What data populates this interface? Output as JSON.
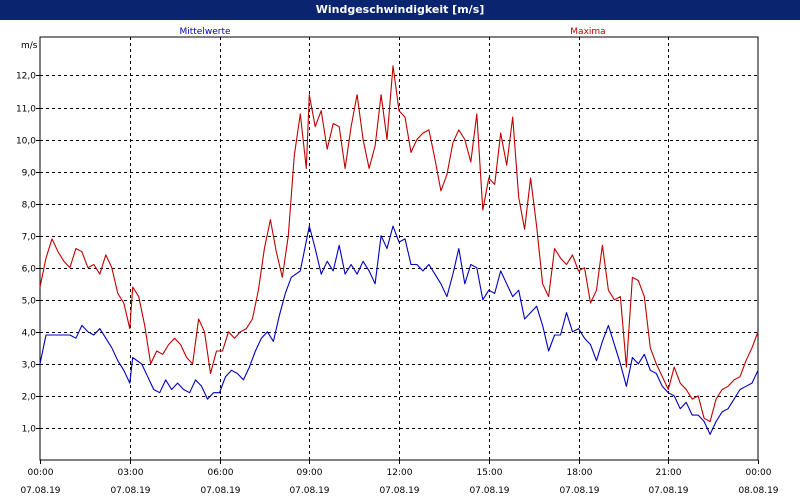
{
  "window": {
    "title": "Windgeschwindigkeit [m/s]"
  },
  "chart_data": {
    "type": "line",
    "title": "Windgeschwindigkeit [m/s]",
    "ylabel": "m/s",
    "ylim": [
      0,
      13.2
    ],
    "yticks": [
      "1,0",
      "2,0",
      "3,0",
      "4,0",
      "5,0",
      "6,0",
      "7,0",
      "8,0",
      "9,0",
      "10,0",
      "11,0",
      "12,0"
    ],
    "xlim": [
      0,
      24
    ],
    "xticks": [
      {
        "time": "00:00",
        "date": "07.08.19"
      },
      {
        "time": "03:00",
        "date": "07.08.19"
      },
      {
        "time": "06:00",
        "date": "07.08.19"
      },
      {
        "time": "09:00",
        "date": "07.08.19"
      },
      {
        "time": "12:00",
        "date": "07.08.19"
      },
      {
        "time": "15:00",
        "date": "07.08.19"
      },
      {
        "time": "18:00",
        "date": "07.08.19"
      },
      {
        "time": "21:00",
        "date": "07.08.19"
      },
      {
        "time": "00:00",
        "date": "08.08.19"
      }
    ],
    "grid": true,
    "legend": "top",
    "series": [
      {
        "name": "Mittelwerte",
        "color": "#0000c0",
        "points": [
          [
            0,
            3.0
          ],
          [
            0.2,
            3.9
          ],
          [
            1,
            3.9
          ],
          [
            1.2,
            3.8
          ],
          [
            1.4,
            4.2
          ],
          [
            1.6,
            4.0
          ],
          [
            1.8,
            3.9
          ],
          [
            2.0,
            4.1
          ],
          [
            2.2,
            3.8
          ],
          [
            2.4,
            3.5
          ],
          [
            2.6,
            3.1
          ],
          [
            2.8,
            2.8
          ],
          [
            3.0,
            2.4
          ],
          [
            3.1,
            3.2
          ],
          [
            3.4,
            3.0
          ],
          [
            3.6,
            2.6
          ],
          [
            3.8,
            2.2
          ],
          [
            4.0,
            2.1
          ],
          [
            4.2,
            2.5
          ],
          [
            4.4,
            2.2
          ],
          [
            4.6,
            2.4
          ],
          [
            4.8,
            2.2
          ],
          [
            5.0,
            2.1
          ],
          [
            5.2,
            2.5
          ],
          [
            5.4,
            2.3
          ],
          [
            5.6,
            1.9
          ],
          [
            5.8,
            2.1
          ],
          [
            6.0,
            2.1
          ],
          [
            6.2,
            2.6
          ],
          [
            6.4,
            2.8
          ],
          [
            6.6,
            2.7
          ],
          [
            6.8,
            2.5
          ],
          [
            7.0,
            2.9
          ],
          [
            7.2,
            3.4
          ],
          [
            7.4,
            3.8
          ],
          [
            7.6,
            4.0
          ],
          [
            7.8,
            3.7
          ],
          [
            8.0,
            4.5
          ],
          [
            8.2,
            5.2
          ],
          [
            8.4,
            5.7
          ],
          [
            8.7,
            5.9
          ],
          [
            9.0,
            7.3
          ],
          [
            9.2,
            6.6
          ],
          [
            9.4,
            5.8
          ],
          [
            9.6,
            6.2
          ],
          [
            9.8,
            5.9
          ],
          [
            10.0,
            6.7
          ],
          [
            10.2,
            5.8
          ],
          [
            10.4,
            6.1
          ],
          [
            10.6,
            5.8
          ],
          [
            10.8,
            6.2
          ],
          [
            11.0,
            5.9
          ],
          [
            11.2,
            5.5
          ],
          [
            11.4,
            7.0
          ],
          [
            11.6,
            6.6
          ],
          [
            11.8,
            7.3
          ],
          [
            12.0,
            6.8
          ],
          [
            12.2,
            6.9
          ],
          [
            12.4,
            6.1
          ],
          [
            12.6,
            6.1
          ],
          [
            12.8,
            5.9
          ],
          [
            13.0,
            6.1
          ],
          [
            13.2,
            5.8
          ],
          [
            13.4,
            5.5
          ],
          [
            13.6,
            5.1
          ],
          [
            13.8,
            5.8
          ],
          [
            14.0,
            6.6
          ],
          [
            14.2,
            5.5
          ],
          [
            14.4,
            6.1
          ],
          [
            14.6,
            6.0
          ],
          [
            14.8,
            5.0
          ],
          [
            15.0,
            5.3
          ],
          [
            15.2,
            5.2
          ],
          [
            15.4,
            5.9
          ],
          [
            15.6,
            5.5
          ],
          [
            15.8,
            5.1
          ],
          [
            16.0,
            5.3
          ],
          [
            16.2,
            4.4
          ],
          [
            16.4,
            4.6
          ],
          [
            16.6,
            4.8
          ],
          [
            16.8,
            4.2
          ],
          [
            17.0,
            3.4
          ],
          [
            17.2,
            3.9
          ],
          [
            17.4,
            3.9
          ],
          [
            17.6,
            4.6
          ],
          [
            17.8,
            4.0
          ],
          [
            18.0,
            4.1
          ],
          [
            18.2,
            3.8
          ],
          [
            18.4,
            3.6
          ],
          [
            18.6,
            3.1
          ],
          [
            18.8,
            3.7
          ],
          [
            19.0,
            4.2
          ],
          [
            19.2,
            3.6
          ],
          [
            19.4,
            3.0
          ],
          [
            19.6,
            2.3
          ],
          [
            19.8,
            3.2
          ],
          [
            20.0,
            3.0
          ],
          [
            20.2,
            3.3
          ],
          [
            20.4,
            2.8
          ],
          [
            20.6,
            2.7
          ],
          [
            20.8,
            2.3
          ],
          [
            21.0,
            2.1
          ],
          [
            21.2,
            2.0
          ],
          [
            21.4,
            1.6
          ],
          [
            21.6,
            1.8
          ],
          [
            21.8,
            1.4
          ],
          [
            22.0,
            1.4
          ],
          [
            22.2,
            1.2
          ],
          [
            22.4,
            0.8
          ],
          [
            22.6,
            1.2
          ],
          [
            22.8,
            1.5
          ],
          [
            23.0,
            1.6
          ],
          [
            23.2,
            1.9
          ],
          [
            23.4,
            2.2
          ],
          [
            23.6,
            2.3
          ],
          [
            23.8,
            2.4
          ],
          [
            24.0,
            2.8
          ]
        ]
      },
      {
        "name": "Maxima",
        "color": "#c00000",
        "points": [
          [
            0,
            5.4
          ],
          [
            0.2,
            6.3
          ],
          [
            0.4,
            6.9
          ],
          [
            0.6,
            6.5
          ],
          [
            0.8,
            6.2
          ],
          [
            1.0,
            6.0
          ],
          [
            1.2,
            6.6
          ],
          [
            1.4,
            6.5
          ],
          [
            1.6,
            6.0
          ],
          [
            1.8,
            6.1
          ],
          [
            2.0,
            5.8
          ],
          [
            2.2,
            6.4
          ],
          [
            2.4,
            6.0
          ],
          [
            2.6,
            5.2
          ],
          [
            2.8,
            4.9
          ],
          [
            3.0,
            4.1
          ],
          [
            3.1,
            5.4
          ],
          [
            3.3,
            5.1
          ],
          [
            3.5,
            4.2
          ],
          [
            3.7,
            3.0
          ],
          [
            3.9,
            3.4
          ],
          [
            4.1,
            3.3
          ],
          [
            4.3,
            3.6
          ],
          [
            4.5,
            3.8
          ],
          [
            4.7,
            3.6
          ],
          [
            4.9,
            3.2
          ],
          [
            5.1,
            3.0
          ],
          [
            5.3,
            4.4
          ],
          [
            5.5,
            4.0
          ],
          [
            5.7,
            2.7
          ],
          [
            5.9,
            3.4
          ],
          [
            6.1,
            3.4
          ],
          [
            6.3,
            4.0
          ],
          [
            6.5,
            3.8
          ],
          [
            6.7,
            4.0
          ],
          [
            6.9,
            4.1
          ],
          [
            7.1,
            4.4
          ],
          [
            7.3,
            5.3
          ],
          [
            7.5,
            6.6
          ],
          [
            7.7,
            7.5
          ],
          [
            7.9,
            6.5
          ],
          [
            8.1,
            5.7
          ],
          [
            8.3,
            7.0
          ],
          [
            8.5,
            9.5
          ],
          [
            8.7,
            10.8
          ],
          [
            8.9,
            9.1
          ],
          [
            9.0,
            11.4
          ],
          [
            9.2,
            10.4
          ],
          [
            9.4,
            10.9
          ],
          [
            9.6,
            9.7
          ],
          [
            9.8,
            10.5
          ],
          [
            10.0,
            10.4
          ],
          [
            10.2,
            9.1
          ],
          [
            10.4,
            10.4
          ],
          [
            10.6,
            11.4
          ],
          [
            10.8,
            10.0
          ],
          [
            11.0,
            9.1
          ],
          [
            11.2,
            9.8
          ],
          [
            11.4,
            11.4
          ],
          [
            11.6,
            10.0
          ],
          [
            11.8,
            12.3
          ],
          [
            12.0,
            10.9
          ],
          [
            12.2,
            10.7
          ],
          [
            12.4,
            9.6
          ],
          [
            12.6,
            10.0
          ],
          [
            12.8,
            10.2
          ],
          [
            13.0,
            10.3
          ],
          [
            13.2,
            9.4
          ],
          [
            13.4,
            8.4
          ],
          [
            13.6,
            8.9
          ],
          [
            13.8,
            9.9
          ],
          [
            14.0,
            10.3
          ],
          [
            14.2,
            10.0
          ],
          [
            14.4,
            9.3
          ],
          [
            14.6,
            10.8
          ],
          [
            14.8,
            7.8
          ],
          [
            15.0,
            8.8
          ],
          [
            15.2,
            8.6
          ],
          [
            15.4,
            10.2
          ],
          [
            15.6,
            9.2
          ],
          [
            15.8,
            10.7
          ],
          [
            16.0,
            8.2
          ],
          [
            16.2,
            7.2
          ],
          [
            16.4,
            8.8
          ],
          [
            16.6,
            7.3
          ],
          [
            16.8,
            5.5
          ],
          [
            17.0,
            5.1
          ],
          [
            17.2,
            6.6
          ],
          [
            17.4,
            6.3
          ],
          [
            17.6,
            6.1
          ],
          [
            17.8,
            6.4
          ],
          [
            18.0,
            5.9
          ],
          [
            18.2,
            6.0
          ],
          [
            18.4,
            4.9
          ],
          [
            18.6,
            5.3
          ],
          [
            18.8,
            6.7
          ],
          [
            19.0,
            5.3
          ],
          [
            19.2,
            5.0
          ],
          [
            19.4,
            5.1
          ],
          [
            19.6,
            2.9
          ],
          [
            19.8,
            5.7
          ],
          [
            20.0,
            5.6
          ],
          [
            20.2,
            5.1
          ],
          [
            20.4,
            3.5
          ],
          [
            20.6,
            3.0
          ],
          [
            20.8,
            2.6
          ],
          [
            21.0,
            2.2
          ],
          [
            21.2,
            2.9
          ],
          [
            21.4,
            2.4
          ],
          [
            21.6,
            2.2
          ],
          [
            21.8,
            1.9
          ],
          [
            22.0,
            2.0
          ],
          [
            22.2,
            1.3
          ],
          [
            22.4,
            1.2
          ],
          [
            22.6,
            1.9
          ],
          [
            22.8,
            2.2
          ],
          [
            23.0,
            2.3
          ],
          [
            23.2,
            2.5
          ],
          [
            23.4,
            2.6
          ],
          [
            23.6,
            3.1
          ],
          [
            23.8,
            3.5
          ],
          [
            24.0,
            4.0
          ]
        ]
      }
    ]
  }
}
